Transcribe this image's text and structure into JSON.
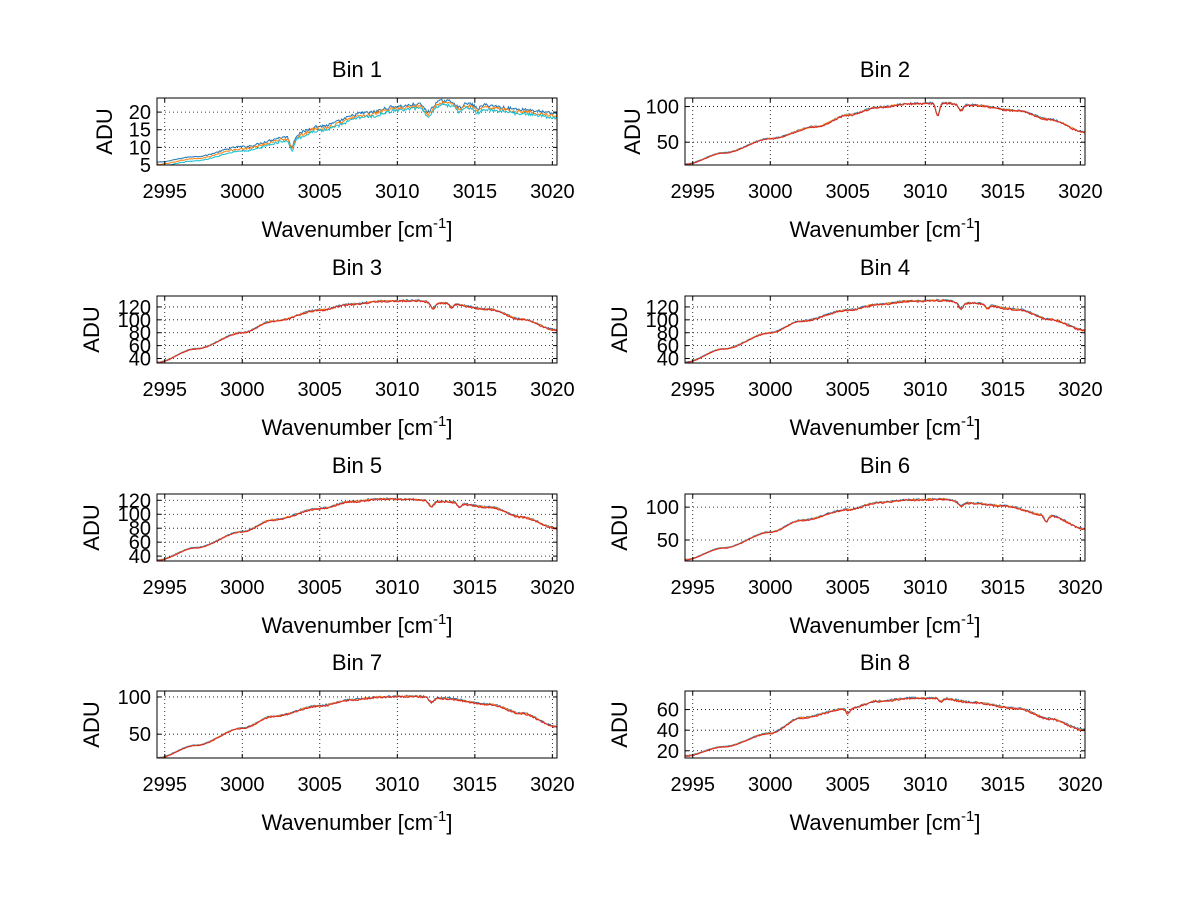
{
  "chart_data": [
    {
      "type": "line",
      "title": "Bin 1",
      "xlabel_text": "Wavenumber [cm",
      "xlabel_sup": "-1",
      "xlabel_close": "]",
      "ylabel": "ADU",
      "xlim": [
        2994.5,
        3020.3
      ],
      "ylim": [
        5,
        24
      ],
      "xticks": [
        2995,
        3000,
        3005,
        3010,
        3015,
        3020
      ],
      "yticks": [
        5,
        10,
        15,
        20
      ],
      "grid": true,
      "colors": [
        "#1f77b4",
        "#ff7f0e",
        "#17becf"
      ],
      "anchors": [
        [
          2994.5,
          5.2
        ],
        [
          2997,
          6.8
        ],
        [
          3000,
          9.6
        ],
        [
          3003,
          12.4
        ],
        [
          3005,
          15.4
        ],
        [
          3008,
          19.2
        ],
        [
          3010,
          21.0
        ],
        [
          3012,
          22.0
        ],
        [
          3013,
          22.6
        ],
        [
          3015,
          21.7
        ],
        [
          3018,
          20.2
        ],
        [
          3020.3,
          19.0
        ]
      ],
      "dips": [
        [
          3003.2,
          3.0,
          0.12
        ],
        [
          3012.0,
          2.5,
          0.25
        ],
        [
          3014.0,
          1.5,
          0.2
        ],
        [
          3015.2,
          1.2,
          0.2
        ]
      ],
      "series_offsets": [
        0.6,
        0.0,
        -0.6
      ],
      "noise": 0.45
    },
    {
      "type": "line",
      "title": "Bin 2",
      "xlabel_text": "Wavenumber [cm",
      "xlabel_sup": "-1",
      "xlabel_close": "]",
      "ylabel": "ADU",
      "xlim": [
        2994.5,
        3020.3
      ],
      "ylim": [
        18,
        112
      ],
      "xticks": [
        2995,
        3000,
        3005,
        3010,
        3015,
        3020
      ],
      "yticks": [
        50,
        100
      ],
      "grid": true,
      "colors": [
        "#1f77b4",
        "#ff7f0e",
        "#d62728"
      ],
      "anchors": [
        [
          2994.5,
          19
        ],
        [
          2997,
          35
        ],
        [
          3000,
          55
        ],
        [
          3003,
          72
        ],
        [
          3005,
          88
        ],
        [
          3007,
          99
        ],
        [
          3009,
          104
        ],
        [
          3011,
          105
        ],
        [
          3013,
          102
        ],
        [
          3016,
          94
        ],
        [
          3018,
          82
        ],
        [
          3020.3,
          64
        ]
      ],
      "dips": [
        [
          3010.8,
          18,
          0.12
        ],
        [
          3012.3,
          8,
          0.15
        ]
      ],
      "series_offsets": [
        0.5,
        0.0,
        -0.5
      ],
      "noise": 1.2
    },
    {
      "type": "line",
      "title": "Bin 3",
      "xlabel_text": "Wavenumber [cm",
      "xlabel_sup": "-1",
      "xlabel_close": "]",
      "ylabel": "ADU",
      "xlim": [
        2994.5,
        3020.3
      ],
      "ylim": [
        33,
        137
      ],
      "xticks": [
        2995,
        3000,
        3005,
        3010,
        3015,
        3020
      ],
      "yticks": [
        40,
        60,
        80,
        100,
        120
      ],
      "grid": true,
      "colors": [
        "#1f77b4",
        "#ff7f0e",
        "#d62728"
      ],
      "anchors": [
        [
          2994.5,
          34
        ],
        [
          2997,
          55
        ],
        [
          3000,
          80
        ],
        [
          3002,
          98
        ],
        [
          3005,
          115
        ],
        [
          3007,
          124
        ],
        [
          3009,
          129
        ],
        [
          3011,
          130
        ],
        [
          3013,
          126
        ],
        [
          3016,
          116
        ],
        [
          3018,
          101
        ],
        [
          3020.3,
          84
        ]
      ],
      "dips": [
        [
          3012.3,
          10,
          0.15
        ],
        [
          3013.5,
          6,
          0.12
        ]
      ],
      "series_offsets": [
        0.5,
        0.0,
        -0.5
      ],
      "noise": 1.3
    },
    {
      "type": "line",
      "title": "Bin 4",
      "xlabel_text": "Wavenumber [cm",
      "xlabel_sup": "-1",
      "xlabel_close": "]",
      "ylabel": "ADU",
      "xlim": [
        2994.5,
        3020.3
      ],
      "ylim": [
        33,
        137
      ],
      "xticks": [
        2995,
        3000,
        3005,
        3010,
        3015,
        3020
      ],
      "yticks": [
        40,
        60,
        80,
        100,
        120
      ],
      "grid": true,
      "colors": [
        "#1f77b4",
        "#ff7f0e",
        "#d62728"
      ],
      "anchors": [
        [
          2994.5,
          34
        ],
        [
          2997,
          55
        ],
        [
          3000,
          80
        ],
        [
          3002,
          98
        ],
        [
          3005,
          115
        ],
        [
          3007,
          124
        ],
        [
          3009,
          129
        ],
        [
          3011,
          130
        ],
        [
          3013,
          126
        ],
        [
          3016,
          116
        ],
        [
          3018,
          101
        ],
        [
          3020.3,
          84
        ]
      ],
      "dips": [
        [
          3012.3,
          10,
          0.15
        ],
        [
          3014.0,
          6,
          0.12
        ]
      ],
      "series_offsets": [
        0.5,
        0.0,
        -0.5
      ],
      "noise": 1.3
    },
    {
      "type": "line",
      "title": "Bin 5",
      "xlabel_text": "Wavenumber [cm",
      "xlabel_sup": "-1",
      "xlabel_close": "]",
      "ylabel": "ADU",
      "xlim": [
        2994.5,
        3020.3
      ],
      "ylim": [
        33,
        129
      ],
      "xticks": [
        2995,
        3000,
        3005,
        3010,
        3015,
        3020
      ],
      "yticks": [
        40,
        60,
        80,
        100,
        120
      ],
      "grid": true,
      "colors": [
        "#1f77b4",
        "#ff7f0e",
        "#d62728"
      ],
      "anchors": [
        [
          2994.5,
          34
        ],
        [
          2997,
          52
        ],
        [
          3000,
          75
        ],
        [
          3002,
          92
        ],
        [
          3005,
          108
        ],
        [
          3007,
          118
        ],
        [
          3009,
          122
        ],
        [
          3011,
          121
        ],
        [
          3013,
          118
        ],
        [
          3016,
          110
        ],
        [
          3018,
          96
        ],
        [
          3020.3,
          80
        ]
      ],
      "dips": [
        [
          3012.2,
          8,
          0.15
        ],
        [
          3014.0,
          6,
          0.12
        ]
      ],
      "series_offsets": [
        0.5,
        0.0,
        -0.5
      ],
      "noise": 1.2
    },
    {
      "type": "line",
      "title": "Bin 6",
      "xlabel_text": "Wavenumber [cm",
      "xlabel_sup": "-1",
      "xlabel_close": "]",
      "ylabel": "ADU",
      "xlim": [
        2994.5,
        3020.3
      ],
      "ylim": [
        18,
        120
      ],
      "xticks": [
        2995,
        3000,
        3005,
        3010,
        3015,
        3020
      ],
      "yticks": [
        50,
        100
      ],
      "grid": true,
      "colors": [
        "#1f77b4",
        "#ff7f0e",
        "#d62728"
      ],
      "anchors": [
        [
          2994.5,
          20
        ],
        [
          2997,
          38
        ],
        [
          3000,
          62
        ],
        [
          3002,
          80
        ],
        [
          3005,
          96
        ],
        [
          3007,
          107
        ],
        [
          3009,
          111
        ],
        [
          3011,
          112
        ],
        [
          3013,
          106
        ],
        [
          3015,
          102
        ],
        [
          3018,
          87
        ],
        [
          3020.3,
          67
        ]
      ],
      "dips": [
        [
          3012.3,
          6,
          0.15
        ],
        [
          3017.8,
          10,
          0.12
        ]
      ],
      "series_offsets": [
        0.5,
        0.0,
        -0.5
      ],
      "noise": 1.2
    },
    {
      "type": "line",
      "title": "Bin 7",
      "xlabel_text": "Wavenumber [cm",
      "xlabel_sup": "-1",
      "xlabel_close": "]",
      "ylabel": "ADU",
      "xlim": [
        2994.5,
        3020.3
      ],
      "ylim": [
        18,
        108
      ],
      "xticks": [
        2995,
        3000,
        3005,
        3010,
        3015,
        3020
      ],
      "yticks": [
        50,
        100
      ],
      "grid": true,
      "colors": [
        "#1f77b4",
        "#ff7f0e",
        "#d62728"
      ],
      "anchors": [
        [
          2994.5,
          18
        ],
        [
          2997,
          35
        ],
        [
          3000,
          58
        ],
        [
          3002,
          74
        ],
        [
          3005,
          88
        ],
        [
          3007,
          96
        ],
        [
          3009,
          100
        ],
        [
          3011,
          101
        ],
        [
          3013,
          98
        ],
        [
          3016,
          90
        ],
        [
          3018,
          78
        ],
        [
          3020.3,
          60
        ]
      ],
      "dips": [
        [
          3012.2,
          6,
          0.15
        ]
      ],
      "series_offsets": [
        0.5,
        0.0,
        -0.5
      ],
      "noise": 1.1
    },
    {
      "type": "line",
      "title": "Bin 8",
      "xlabel_text": "Wavenumber [cm",
      "xlabel_sup": "-1",
      "xlabel_close": "]",
      "ylabel": "ADU",
      "xlim": [
        2994.5,
        3020.3
      ],
      "ylim": [
        13,
        78
      ],
      "xticks": [
        2995,
        3000,
        3005,
        3010,
        3015,
        3020
      ],
      "yticks": [
        20,
        40,
        60
      ],
      "grid": true,
      "colors": [
        "#1f77b4",
        "#ff7f0e",
        "#d62728"
      ],
      "anchors": [
        [
          2994.5,
          15
        ],
        [
          2997,
          24
        ],
        [
          3000,
          37
        ],
        [
          3002,
          52
        ],
        [
          3005,
          61
        ],
        [
          3007,
          68
        ],
        [
          3009,
          71
        ],
        [
          3011,
          71
        ],
        [
          3013,
          67
        ],
        [
          3016,
          61
        ],
        [
          3018,
          51
        ],
        [
          3020.3,
          40
        ]
      ],
      "dips": [
        [
          3005.0,
          5,
          0.12
        ],
        [
          3011.0,
          3,
          0.12
        ]
      ],
      "series_offsets": [
        0.4,
        0.0,
        -0.4
      ],
      "noise": 0.8
    }
  ]
}
